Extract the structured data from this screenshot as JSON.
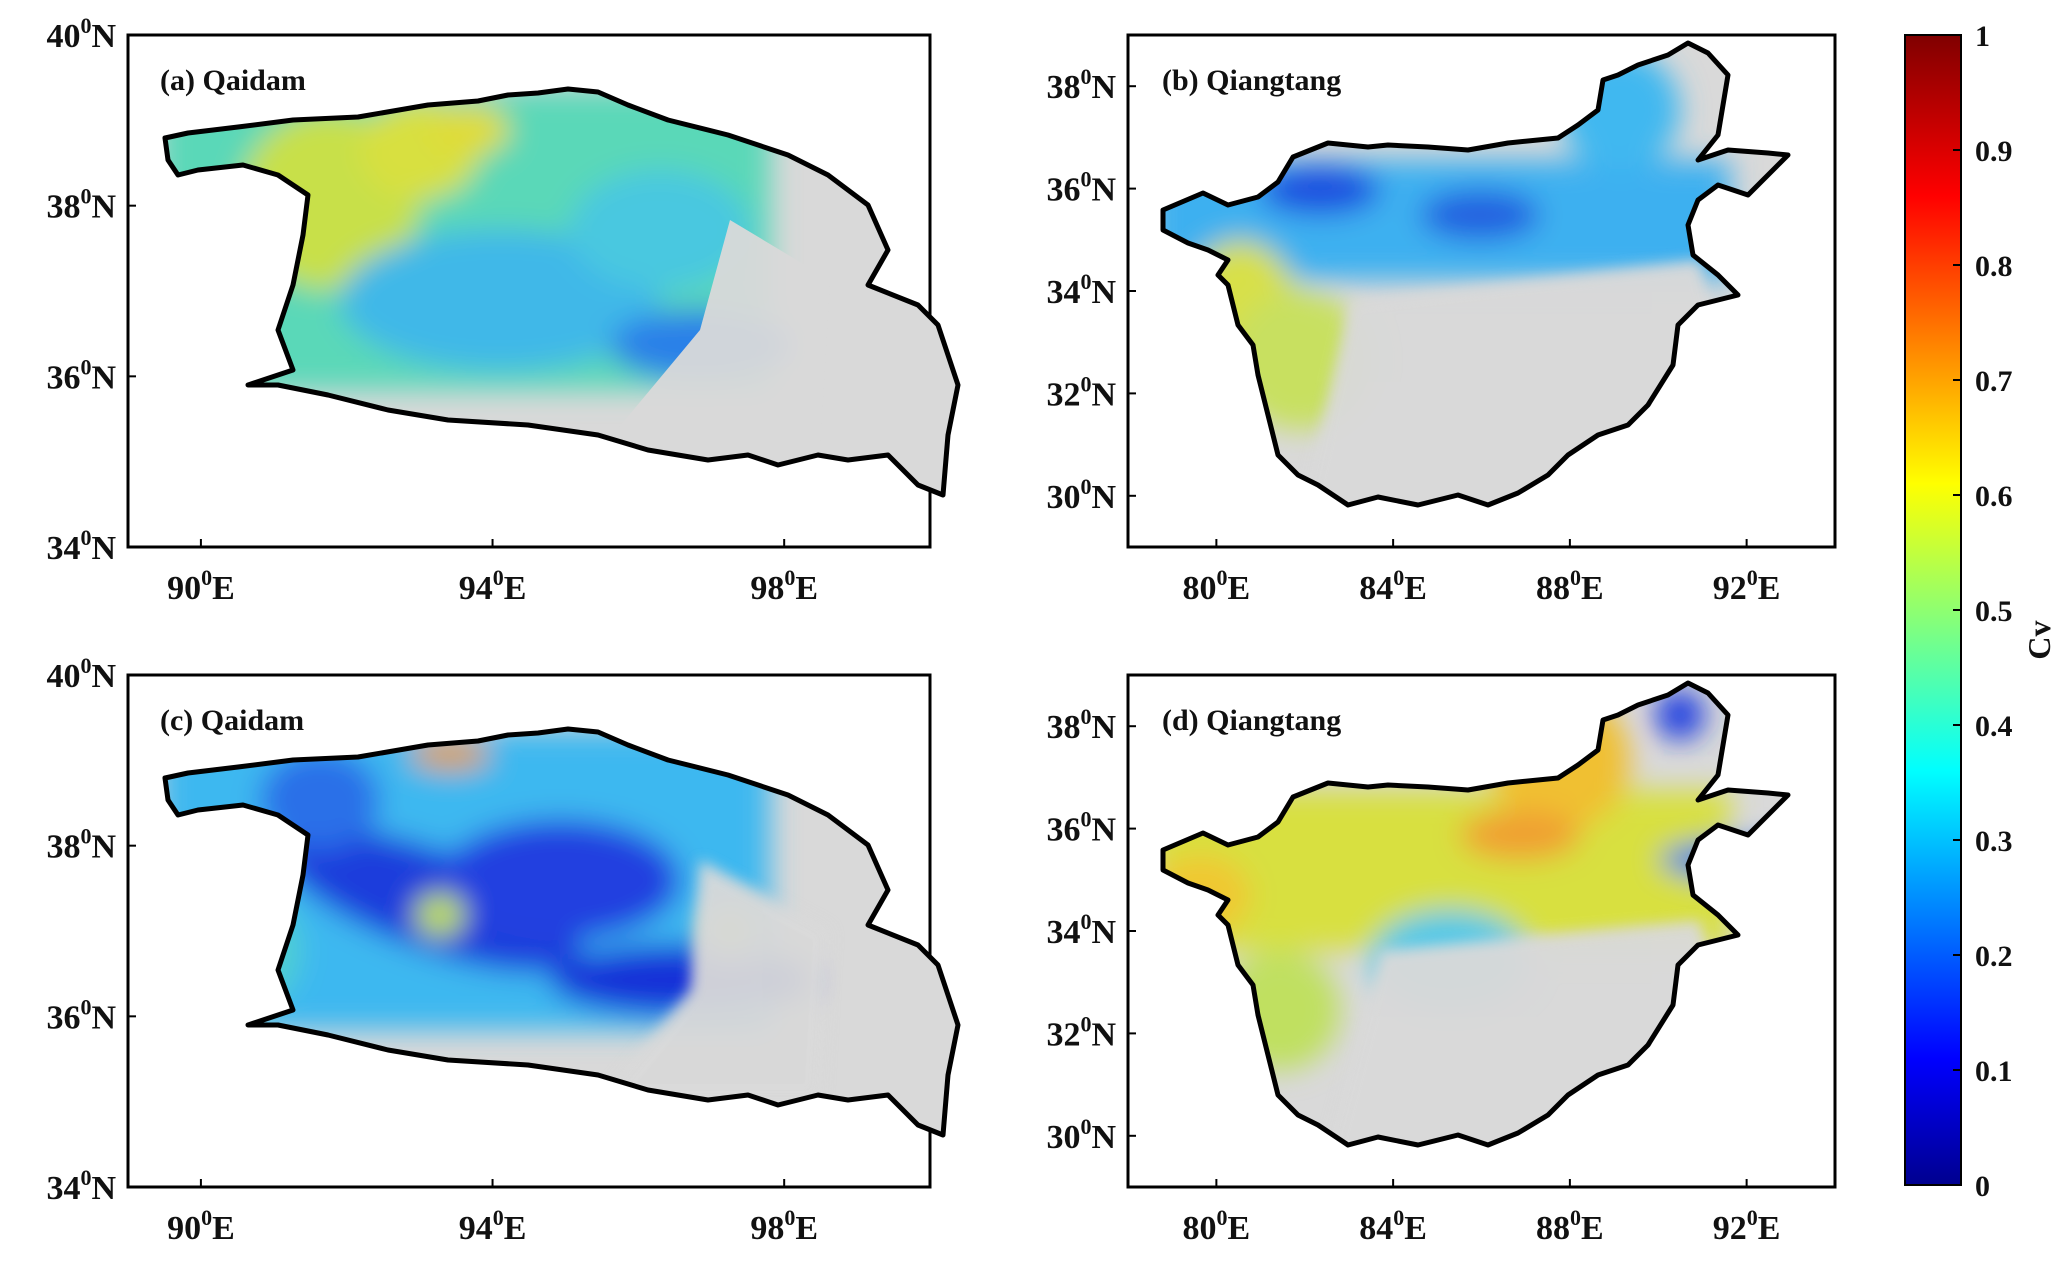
{
  "panels": [
    {
      "id": "a",
      "title": "(a) Qaidam",
      "y_ticks": [
        {
          "label": "40",
          "lat": 40
        },
        {
          "label": "38",
          "lat": 38
        },
        {
          "label": "36",
          "lat": 36
        },
        {
          "label": "34",
          "lat": 34
        }
      ],
      "x_ticks": [
        {
          "label": "90",
          "lon": 90
        },
        {
          "label": "94",
          "lon": 94
        },
        {
          "label": "98",
          "lon": 98
        }
      ]
    },
    {
      "id": "b",
      "title": "(b) Qiangtang",
      "y_ticks": [
        {
          "label": "38",
          "lat": 38
        },
        {
          "label": "36",
          "lat": 36
        },
        {
          "label": "34",
          "lat": 34
        },
        {
          "label": "32",
          "lat": 32
        },
        {
          "label": "30",
          "lat": 30
        }
      ],
      "x_ticks": [
        {
          "label": "80",
          "lon": 80
        },
        {
          "label": "84",
          "lon": 84
        },
        {
          "label": "88",
          "lon": 88
        },
        {
          "label": "92",
          "lon": 92
        }
      ]
    },
    {
      "id": "c",
      "title": "(c) Qaidam",
      "y_ticks": [
        {
          "label": "40",
          "lat": 40
        },
        {
          "label": "38",
          "lat": 38
        },
        {
          "label": "36",
          "lat": 36
        },
        {
          "label": "34",
          "lat": 34
        }
      ],
      "x_ticks": [
        {
          "label": "90",
          "lon": 90
        },
        {
          "label": "94",
          "lon": 94
        },
        {
          "label": "98",
          "lon": 98
        }
      ]
    },
    {
      "id": "d",
      "title": "(d) Qiangtang",
      "y_ticks": [
        {
          "label": "38",
          "lat": 38
        },
        {
          "label": "36",
          "lat": 36
        },
        {
          "label": "34",
          "lat": 34
        },
        {
          "label": "32",
          "lat": 32
        },
        {
          "label": "30",
          "lat": 30
        }
      ],
      "x_ticks": [
        {
          "label": "80",
          "lon": 80
        },
        {
          "label": "84",
          "lon": 84
        },
        {
          "label": "88",
          "lon": 88
        },
        {
          "label": "92",
          "lon": 92
        }
      ]
    }
  ],
  "degree_symbol": "0",
  "north_suffix": "N",
  "east_suffix": "E",
  "colorbar": {
    "label": "Cv",
    "min": 0,
    "max": 1,
    "ticks": [
      "0",
      "0.1",
      "0.2",
      "0.3",
      "0.4",
      "0.5",
      "0.6",
      "0.7",
      "0.8",
      "0.9",
      "1"
    ],
    "colormap": "jet"
  },
  "colors": {
    "no_data": "#d9d9d9",
    "outline": "#000000",
    "dark_blue": "#1424d8",
    "blue": "#2a8cf0",
    "cyan": "#3cc8f0",
    "green": "#5ae09a",
    "yellow": "#e6e640",
    "orange": "#f5a020",
    "red": "#d21e14"
  }
}
